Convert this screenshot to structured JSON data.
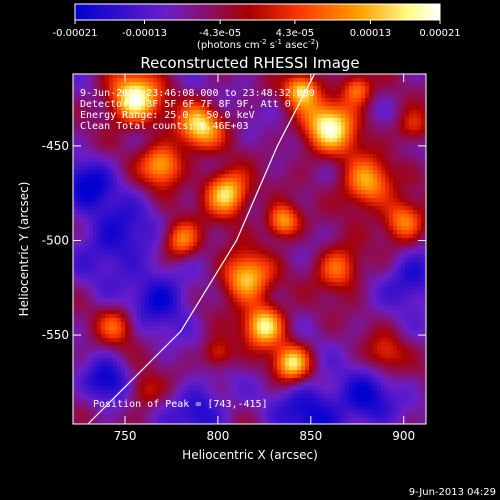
{
  "chart_data": {
    "type": "heatmap",
    "title": "Reconstructed RHESSI Image",
    "xlabel": "Heliocentric X (arcsec)",
    "ylabel": "Heliocentric Y (arcsec)",
    "xlim": [
      722,
      912
    ],
    "ylim": [
      -597,
      -412
    ],
    "xticks": [
      750,
      800,
      850,
      900
    ],
    "yticks": [
      -450,
      -500,
      -550
    ],
    "colorbar": {
      "label_main": "(photons cm",
      "label_exp1": "-2",
      "label_mid": " s",
      "label_exp2": "-1",
      "label_end": " asec",
      "label_exp3": "-2",
      "label_close": ")",
      "tick_labels": [
        "-0.00021",
        "-0.00013",
        "-4.3e-05",
        "4.3e-05",
        "0.00013",
        "0.00021"
      ],
      "tick_values": [
        -0.00021,
        -0.00013,
        -4.3e-05,
        4.3e-05,
        0.00013,
        0.00021
      ],
      "range": [
        -0.00021,
        0.00021
      ],
      "colors": [
        "#0000d0",
        "#6a1ec8",
        "#a80000",
        "#ff3a00",
        "#ffa000",
        "#ffff90",
        "#ffffff"
      ]
    },
    "annotations": {
      "time": "9-Jun-2013 23:46:08.000 to 23:48:32.000",
      "detectors": "Detectors: 3F 5F 6F 7F 8F 9F, Att 0",
      "energy": "Energy Range: 25.0 - 50.0 keV",
      "method": "Clean    Total counts: 6.46E+03",
      "peak": "Position of Peak = [743,-415]"
    },
    "peak": [
      743,
      -415
    ],
    "limb_line": [
      [
        730,
        -597
      ],
      [
        780,
        -548
      ],
      [
        810,
        -500
      ],
      [
        832,
        -450
      ],
      [
        852,
        -412
      ]
    ]
  },
  "footer": {
    "date": "9-Jun-2013 04:29"
  }
}
